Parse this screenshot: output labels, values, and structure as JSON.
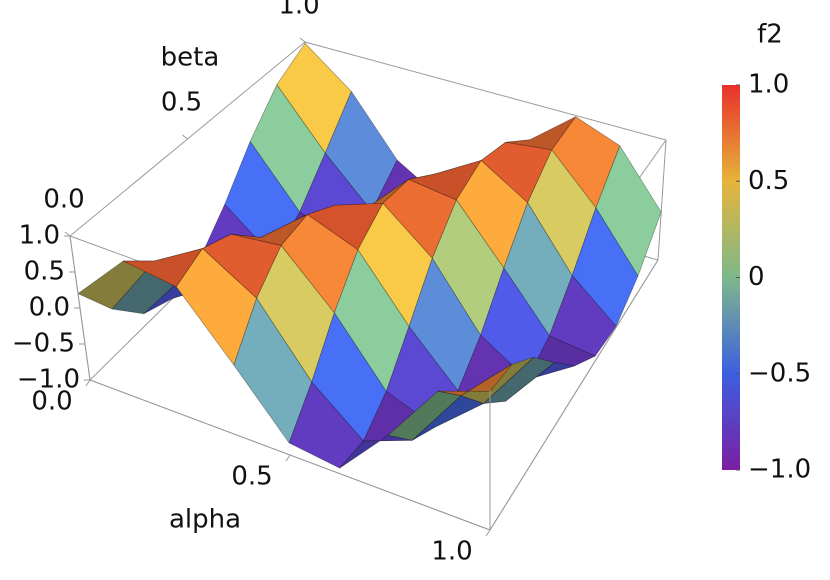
{
  "chart_data": {
    "type": "surface",
    "x_label": "alpha",
    "y_label": "beta",
    "colorbar_title": "f2",
    "alpha": [
      0,
      0.125,
      0.25,
      0.375,
      0.5,
      0.625,
      0.75,
      0.875,
      1
    ],
    "beta": [
      0,
      0.125,
      0.25,
      0.375,
      0.5,
      0.625,
      0.75,
      0.875,
      1
    ],
    "z": [
      [
        0.2,
        -0.38,
        -0.83,
        -1.0,
        -0.83,
        -0.39,
        0.19,
        0.7,
        0.98
      ],
      [
        0.92,
        0.56,
        0.0,
        -0.55,
        -0.92,
        -0.98,
        -0.71,
        -0.2,
        0.38
      ],
      [
        0.83,
        1.0,
        0.83,
        0.39,
        -0.19,
        -0.71,
        -0.98,
        -0.93,
        -0.56
      ],
      [
        0.0,
        0.55,
        0.92,
        0.98,
        0.71,
        0.2,
        -0.38,
        -0.83,
        -1.0
      ],
      [
        -0.83,
        -0.39,
        0.19,
        0.7,
        0.98,
        0.92,
        0.56,
        0.0,
        -0.55
      ],
      [
        -0.92,
        -0.98,
        -0.71,
        -0.2,
        0.38,
        0.83,
        1.0,
        0.83,
        0.39
      ],
      [
        -0.19,
        -0.71,
        -0.98,
        -0.92,
        -0.56,
        0.0,
        0.55,
        0.92,
        0.98
      ],
      [
        0.71,
        0.2,
        -0.38,
        -0.83,
        -1.0,
        -0.83,
        -0.39,
        0.19,
        0.7
      ],
      [
        0.98,
        0.92,
        0.56,
        0.0,
        -0.55,
        -0.92,
        -0.98,
        -0.71,
        -0.2
      ]
    ],
    "xlim": [
      0,
      1
    ],
    "ylim": [
      0,
      1
    ],
    "zlim": [
      -1,
      1
    ],
    "xticks": [
      {
        "value": 0,
        "label": "0.0"
      },
      0.5,
      {
        "value": 1,
        "label": "1.0"
      }
    ],
    "yticks": [
      {
        "value": 0,
        "label": "0.0"
      },
      0.5,
      {
        "value": 1,
        "label": "1.0"
      }
    ],
    "zticks": [
      {
        "value": 1,
        "label": "1.0"
      },
      0.5,
      {
        "value": 0,
        "label": "0.0"
      },
      {
        "value": -0.5,
        "label": "−0.5"
      },
      {
        "value": -1,
        "label": "−1.0"
      }
    ],
    "colorbar_ticks": [
      {
        "value": 1,
        "label": "1.0"
      },
      0.5,
      0,
      {
        "value": -0.5,
        "label": "−0.5"
      },
      {
        "value": -1,
        "label": "−1.0"
      }
    ],
    "colorscale": [
      {
        "value": -1,
        "color": "#7b1fa2"
      },
      {
        "value": -0.5,
        "color": "#3d5fe0"
      },
      {
        "value": 0,
        "color": "#7db88a"
      },
      {
        "value": 0.5,
        "color": "#e6b43a"
      },
      {
        "value": 1,
        "color": "#e8302a"
      }
    ]
  }
}
